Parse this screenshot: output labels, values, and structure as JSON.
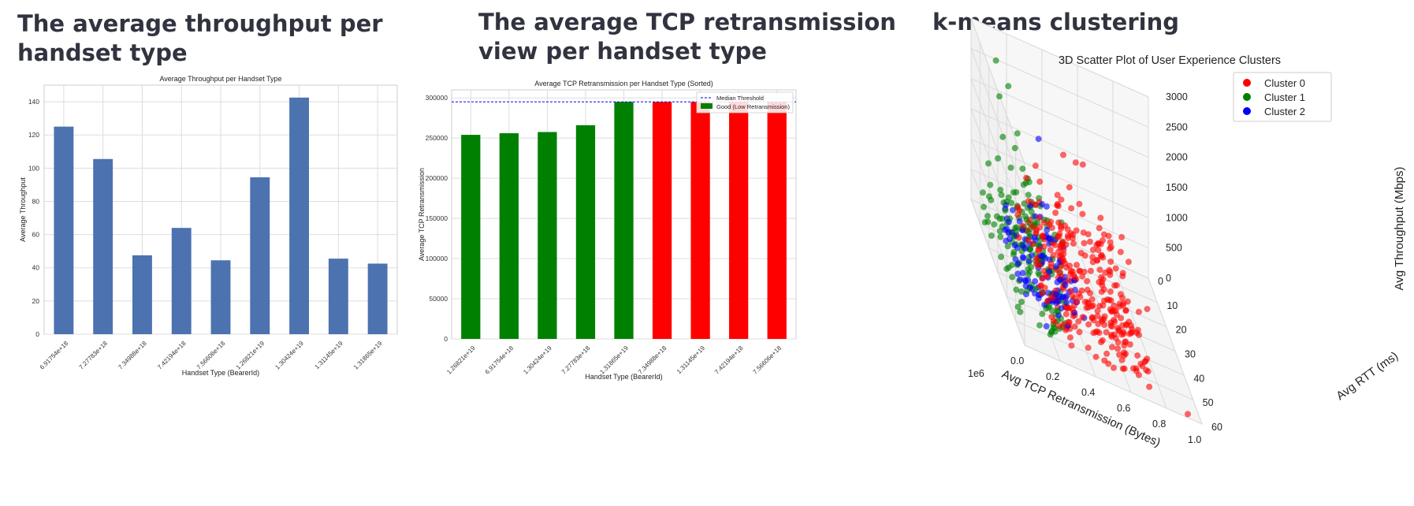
{
  "panels": [
    {
      "heading": "The average throughput per handset type"
    },
    {
      "heading": "The average TCP retransmission view per handset type"
    },
    {
      "heading": "k-means clustering"
    }
  ],
  "chart_data": [
    {
      "type": "bar",
      "title": "Average Throughput per Handset Type",
      "xlabel": "Handset Type (BearerId)",
      "ylabel": "Average Throughput",
      "categories": [
        "6.91754e+18",
        "7.27783e+18",
        "7.34988e+18",
        "7.42194e+18",
        "7.56606e+18",
        "1.26821e+19",
        "1.30424e+19",
        "1.31145e+19",
        "1.31865e+19"
      ],
      "values": [
        125,
        105.5,
        47.5,
        64,
        44.5,
        94.5,
        142.5,
        45.5,
        42.5
      ],
      "ylim": [
        0,
        150
      ],
      "yticks": [
        0,
        20,
        40,
        60,
        80,
        100,
        120,
        140
      ],
      "bar_color": "#4c72b0",
      "grid": true
    },
    {
      "type": "bar",
      "title": "Average TCP Retransmission per Handset Type (Sorted)",
      "xlabel": "Handset Type (BearerId)",
      "ylabel": "Average TCP Retransmission",
      "categories": [
        "1.26821e+19",
        "6.91754e+18",
        "1.30424e+19",
        "7.27783e+18",
        "1.31865e+19",
        "7.34988e+18",
        "1.31145e+19",
        "7.42194e+18",
        "7.56606e+18"
      ],
      "values": [
        254000,
        256000,
        257500,
        266000,
        295000,
        295000,
        295000,
        295000,
        295000
      ],
      "bar_colors": [
        "#008000",
        "#008000",
        "#008000",
        "#008000",
        "#008000",
        "#ff0000",
        "#ff0000",
        "#ff0000",
        "#ff0000"
      ],
      "median_threshold": 295000,
      "ylim": [
        0,
        310000
      ],
      "yticks": [
        0,
        50000,
        100000,
        150000,
        200000,
        250000,
        300000
      ],
      "legend": [
        {
          "label": "Median Threshold",
          "kind": "dashed-line",
          "color": "#0000ff"
        },
        {
          "label": "Good (Low Retransmission)",
          "kind": "patch",
          "color": "#008000"
        }
      ],
      "legend_position": "top-right",
      "grid": true
    },
    {
      "type": "scatter",
      "title": "3D Scatter Plot of User Experience Clusters",
      "xlabel": "Avg TCP Retransmission (Bytes)",
      "x_offset_label": "1e6",
      "ylabel": "Avg RTT (ms)",
      "zlabel": "Avg Throughput (Mbps)",
      "xlim": [
        0,
        1.0
      ],
      "ylim": [
        0,
        60
      ],
      "zlim": [
        0,
        3000
      ],
      "xticks": [
        "0.0",
        "0.2",
        "0.4",
        "0.6",
        "0.8",
        "1.0"
      ],
      "yticks": [
        "0",
        "10",
        "20",
        "30",
        "40",
        "50",
        "60"
      ],
      "zticks": [
        "0",
        "500",
        "1000",
        "1500",
        "2000",
        "2500",
        "3000"
      ],
      "legend_position": "top-right",
      "series": [
        {
          "name": "Cluster 0",
          "color": "#ff0000"
        },
        {
          "name": "Cluster 1",
          "color": "#008000"
        },
        {
          "name": "Cluster 2",
          "color": "#0000ff"
        }
      ]
    }
  ]
}
